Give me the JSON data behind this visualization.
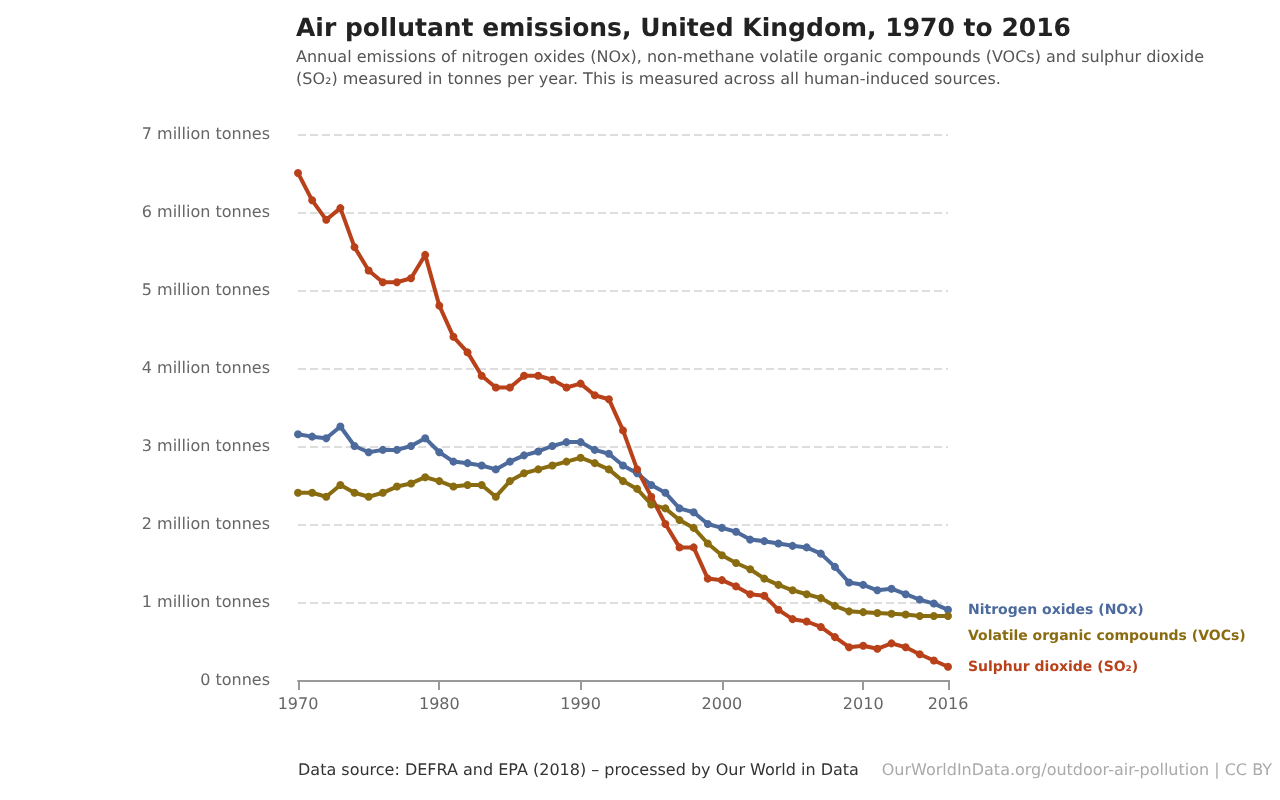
{
  "chart_data": {
    "type": "line",
    "title": "Air pollutant emissions, United Kingdom, 1970 to 2016",
    "subtitle": "Annual emissions of nitrogen oxides (NOx), non-methane volatile organic compounds (VOCs) and sulphur dioxide (SO₂) measured in tonnes per year. This is measured across all human-induced sources.",
    "x": [
      1970,
      1971,
      1972,
      1973,
      1974,
      1975,
      1976,
      1977,
      1978,
      1979,
      1980,
      1981,
      1982,
      1983,
      1984,
      1985,
      1986,
      1987,
      1988,
      1989,
      1990,
      1991,
      1992,
      1993,
      1994,
      1995,
      1996,
      1997,
      1998,
      1999,
      2000,
      2001,
      2002,
      2003,
      2004,
      2005,
      2006,
      2007,
      2008,
      2009,
      2010,
      2011,
      2012,
      2013,
      2014,
      2015,
      2016
    ],
    "series": [
      {
        "name": "Nitrogen oxides (NOx)",
        "color": "#4c6a9c",
        "values": [
          3.15,
          3.12,
          3.1,
          3.25,
          3.0,
          2.92,
          2.95,
          2.95,
          3.0,
          3.1,
          2.92,
          2.8,
          2.78,
          2.75,
          2.7,
          2.8,
          2.88,
          2.93,
          3.0,
          3.05,
          3.05,
          2.95,
          2.9,
          2.75,
          2.65,
          2.5,
          2.4,
          2.2,
          2.15,
          2.0,
          1.95,
          1.9,
          1.8,
          1.78,
          1.75,
          1.72,
          1.7,
          1.62,
          1.45,
          1.25,
          1.22,
          1.15,
          1.17,
          1.1,
          1.03,
          0.98,
          0.9
        ]
      },
      {
        "name": "Volatile organic compounds (VOCs)",
        "color": "#8a6c10",
        "values": [
          2.4,
          2.4,
          2.35,
          2.5,
          2.4,
          2.35,
          2.4,
          2.48,
          2.52,
          2.6,
          2.55,
          2.48,
          2.5,
          2.5,
          2.35,
          2.55,
          2.65,
          2.7,
          2.75,
          2.8,
          2.85,
          2.78,
          2.7,
          2.55,
          2.45,
          2.25,
          2.2,
          2.05,
          1.95,
          1.75,
          1.6,
          1.5,
          1.42,
          1.3,
          1.22,
          1.15,
          1.1,
          1.05,
          0.95,
          0.88,
          0.87,
          0.86,
          0.85,
          0.84,
          0.82,
          0.82,
          0.82
        ]
      },
      {
        "name": "Sulphur dioxide (SO₂)",
        "color": "#b8411a",
        "values": [
          6.5,
          6.15,
          5.9,
          6.05,
          5.55,
          5.25,
          5.1,
          5.1,
          5.15,
          5.45,
          4.8,
          4.4,
          4.2,
          3.9,
          3.75,
          3.75,
          3.9,
          3.9,
          3.85,
          3.75,
          3.8,
          3.65,
          3.6,
          3.2,
          2.7,
          2.35,
          2.0,
          1.7,
          1.7,
          1.3,
          1.28,
          1.2,
          1.1,
          1.08,
          0.9,
          0.78,
          0.75,
          0.68,
          0.55,
          0.42,
          0.44,
          0.4,
          0.47,
          0.42,
          0.33,
          0.25,
          0.17
        ]
      }
    ],
    "xlim": [
      1970,
      2016
    ],
    "xticks": [
      1970,
      1980,
      1990,
      2000,
      2010,
      2016
    ],
    "ylim": [
      0,
      7
    ],
    "yticks": [
      {
        "value": 0,
        "label": "0 tonnes"
      },
      {
        "value": 1,
        "label": "1 million tonnes"
      },
      {
        "value": 2,
        "label": "2 million tonnes"
      },
      {
        "value": 3,
        "label": "3 million tonnes"
      },
      {
        "value": 4,
        "label": "4 million tonnes"
      },
      {
        "value": 5,
        "label": "5 million tonnes"
      },
      {
        "value": 6,
        "label": "6 million tonnes"
      },
      {
        "value": 7,
        "label": "7 million tonnes"
      }
    ],
    "grid": "y",
    "marker": "circle",
    "line_style": "solid",
    "legend": "right",
    "annotations": [
      "Data source: DEFRA and EPA (2018) – processed by Our World in Data",
      "OurWorldInData.org/outdoor-air-pollution | CC BY"
    ]
  }
}
